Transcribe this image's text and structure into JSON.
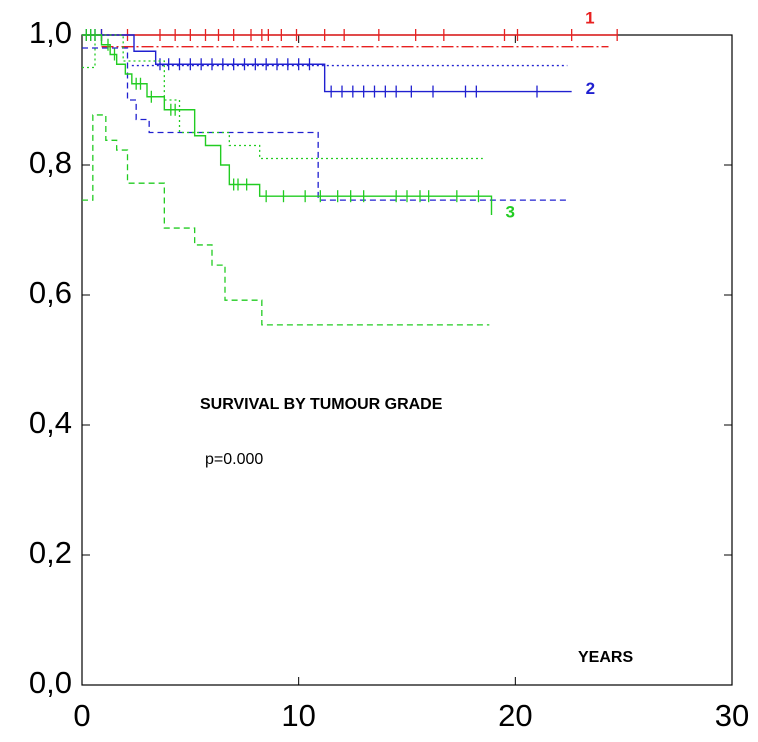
{
  "chart_data": {
    "type": "step",
    "annotations": [
      "SURVIVAL BY TUMOUR GRADE",
      "p=0.000",
      "YEARS"
    ],
    "xlim": [
      0,
      30
    ],
    "ylim": [
      0,
      1
    ],
    "xticks": [
      0,
      10,
      20,
      30
    ],
    "yticks": [
      {
        "value": 0,
        "label": "0,0"
      },
      {
        "value": 0.2,
        "label": "0,2"
      },
      {
        "value": 0.4,
        "label": "0,4"
      },
      {
        "value": 0.6,
        "label": "0,6"
      },
      {
        "value": 0.8,
        "label": "0,8"
      },
      {
        "value": 1,
        "label": "1,0"
      }
    ],
    "series": [
      {
        "name": "1",
        "color": "#e82020",
        "x": [
          0,
          24.7
        ],
        "values": [
          1,
          1
        ],
        "censor_x": [
          0.9,
          2.1,
          3.6,
          4.3,
          5.0,
          5.7,
          6.3,
          7.0,
          7.8,
          8.3,
          8.6,
          9.2,
          9.9,
          11.2,
          12.1,
          13.7,
          15.4,
          16.7,
          19.5,
          20.1,
          22.6,
          24.7
        ],
        "ci": [
          {
            "dash": "12 3 2 3",
            "x": [
              0.9,
              24.3
            ],
            "values": [
              0.982,
              0.982
            ]
          }
        ]
      },
      {
        "name": "2",
        "color": "#2020d0",
        "x": [
          0,
          2.4,
          3.4,
          11.2,
          22.6
        ],
        "values": [
          1,
          0.975,
          0.955,
          0.913,
          0.913
        ],
        "censor_x": [
          0.2,
          0.4,
          0.6,
          0.9,
          3.6,
          4.0,
          4.5,
          5.0,
          5.5,
          6.0,
          6.5,
          7.0,
          7.5,
          8.0,
          8.5,
          9.0,
          9.5,
          10.0,
          10.5,
          11.5,
          12.0,
          12.5,
          13.0,
          13.5,
          14.0,
          14.5,
          15.2,
          16.2,
          17.7,
          18.2,
          21.0
        ],
        "ci": [
          {
            "dash": "2 3",
            "x": [
              2.3,
              22.4
            ],
            "values": [
              0.953,
              0.953
            ]
          },
          {
            "dash": "6 4",
            "x": [
              0,
              2.1,
              2.5,
              3.1,
              10.9,
              22.5
            ],
            "values": [
              0.98,
              0.9,
              0.87,
              0.85,
              0.746,
              0.746
            ]
          }
        ]
      },
      {
        "name": "3",
        "color": "#22cc22",
        "x": [
          0,
          0.9,
          1.3,
          1.6,
          2.0,
          2.3,
          3.0,
          3.8,
          5.2,
          5.7,
          6.4,
          6.8,
          8.2,
          18.9
        ],
        "values": [
          1,
          0.985,
          0.97,
          0.955,
          0.94,
          0.925,
          0.905,
          0.885,
          0.845,
          0.83,
          0.8,
          0.77,
          0.752,
          0.723
        ],
        "censor_x": [
          0.2,
          0.4,
          0.6,
          1.2,
          1.5,
          2.5,
          2.7,
          3.2,
          4.1,
          4.3,
          7.0,
          7.2,
          7.6,
          8.5,
          9.3,
          10.3,
          11.0,
          11.8,
          12.4,
          13.0,
          14.5,
          15.0,
          15.6,
          16.0,
          17.3,
          18.3
        ],
        "ci": [
          {
            "dash": "2 3",
            "x": [
              0,
              0.6,
              1.9,
              3.8,
              4.5,
              6.8,
              8.2,
              18.5
            ],
            "values": [
              0.95,
              1,
              0.96,
              0.9,
              0.85,
              0.83,
              0.81,
              0.81
            ]
          },
          {
            "dash": "6 4",
            "x": [
              0,
              0.5,
              1.1,
              1.6,
              2.1,
              3.8,
              5.2,
              6.0,
              6.6,
              8.3,
              18.8
            ],
            "values": [
              0.746,
              0.877,
              0.838,
              0.823,
              0.772,
              0.703,
              0.677,
              0.646,
              0.592,
              0.554,
              0.554
            ]
          }
        ]
      }
    ]
  }
}
